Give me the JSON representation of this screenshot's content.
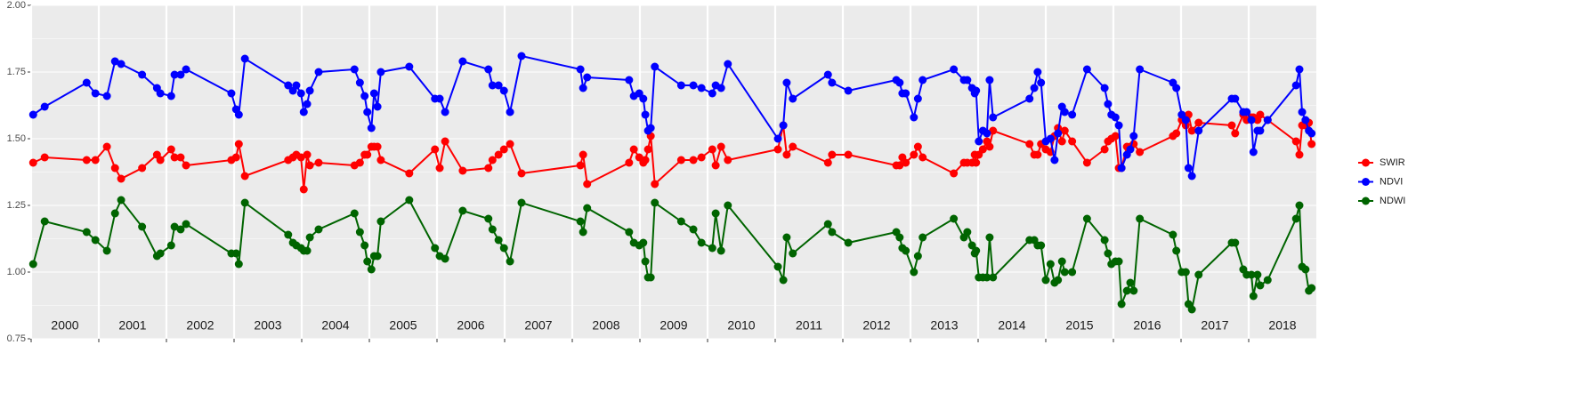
{
  "chart_data": {
    "type": "line",
    "year_labels": [
      "2000",
      "2001",
      "2002",
      "2003",
      "2004",
      "2005",
      "2006",
      "2007",
      "2008",
      "2009",
      "2010",
      "2011",
      "2012",
      "2013",
      "2014",
      "2015",
      "2016",
      "2017",
      "2018"
    ],
    "x": [
      2000.03,
      2000.2,
      2000.82,
      2000.95,
      2001.12,
      2001.24,
      2001.33,
      2001.64,
      2001.86,
      2001.91,
      2002.07,
      2002.12,
      2002.21,
      2002.29,
      2002.96,
      2003.03,
      2003.07,
      2003.16,
      2003.8,
      2003.87,
      2003.92,
      2003.99,
      2004.03,
      2004.08,
      2004.12,
      2004.25,
      2004.78,
      2004.86,
      2004.93,
      2004.97,
      2005.03,
      2005.07,
      2005.12,
      2005.17,
      2005.59,
      2005.97,
      2006.04,
      2006.12,
      2006.38,
      2006.76,
      2006.82,
      2006.91,
      2006.99,
      2007.08,
      2007.25,
      2008.12,
      2008.16,
      2008.22,
      2008.84,
      2008.91,
      2008.99,
      2009.05,
      2009.08,
      2009.12,
      2009.16,
      2009.22,
      2009.61,
      2009.79,
      2009.91,
      2010.07,
      2010.12,
      2010.2,
      2010.3,
      2011.04,
      2011.12,
      2011.17,
      2011.26,
      2011.78,
      2011.84,
      2012.08,
      2012.79,
      2012.84,
      2012.88,
      2012.93,
      2013.05,
      2013.11,
      2013.18,
      2013.64,
      2013.79,
      2013.84,
      2013.91,
      2013.95,
      2013.97,
      2014.01,
      2014.07,
      2014.13,
      2014.17,
      2014.22,
      2014.76,
      2014.83,
      2014.88,
      2014.93,
      2015.0,
      2015.07,
      2015.13,
      2015.18,
      2015.24,
      2015.28,
      2015.39,
      2015.61,
      2015.87,
      2015.92,
      2015.97,
      2016.03,
      2016.08,
      2016.12,
      2016.2,
      2016.25,
      2016.3,
      2016.39,
      2016.88,
      2016.93,
      2017.01,
      2017.07,
      2017.11,
      2017.16,
      2017.26,
      2017.75,
      2017.8,
      2017.92,
      2017.97,
      2018.04,
      2018.07,
      2018.13,
      2018.17,
      2018.28,
      2018.7,
      2018.75,
      2018.79,
      2018.84,
      2018.89,
      2018.93
    ],
    "series": [
      {
        "name": "SWIR",
        "color": "#ff0000",
        "values": [
          1.41,
          1.43,
          1.42,
          1.42,
          1.47,
          1.39,
          1.35,
          1.39,
          1.44,
          1.42,
          1.46,
          1.43,
          1.43,
          1.4,
          1.42,
          1.43,
          1.48,
          1.36,
          1.42,
          1.43,
          1.44,
          1.43,
          1.31,
          1.44,
          1.4,
          1.41,
          1.4,
          1.41,
          1.44,
          1.44,
          1.47,
          1.47,
          1.47,
          1.42,
          1.37,
          1.46,
          1.39,
          1.49,
          1.38,
          1.39,
          1.42,
          1.44,
          1.46,
          1.48,
          1.37,
          1.4,
          1.44,
          1.33,
          1.41,
          1.46,
          1.43,
          1.41,
          1.42,
          1.46,
          1.51,
          1.33,
          1.42,
          1.42,
          1.43,
          1.46,
          1.4,
          1.47,
          1.42,
          1.46,
          1.55,
          1.44,
          1.47,
          1.41,
          1.44,
          1.44,
          1.4,
          1.4,
          1.43,
          1.41,
          1.44,
          1.47,
          1.43,
          1.37,
          1.41,
          1.41,
          1.41,
          1.44,
          1.41,
          1.44,
          1.46,
          1.49,
          1.47,
          1.53,
          1.48,
          1.44,
          1.44,
          1.48,
          1.46,
          1.45,
          1.51,
          1.54,
          1.49,
          1.53,
          1.49,
          1.41,
          1.46,
          1.49,
          1.5,
          1.51,
          1.39,
          1.39,
          1.47,
          1.47,
          1.48,
          1.45,
          1.51,
          1.52,
          1.57,
          1.55,
          1.59,
          1.53,
          1.56,
          1.55,
          1.52,
          1.59,
          1.57,
          1.58,
          1.58,
          1.57,
          1.59,
          1.57,
          1.49,
          1.44,
          1.55,
          1.55,
          1.56,
          1.48
        ]
      },
      {
        "name": "NDVI",
        "color": "#0000ff",
        "values": [
          1.59,
          1.62,
          1.71,
          1.67,
          1.66,
          1.79,
          1.78,
          1.74,
          1.69,
          1.67,
          1.66,
          1.74,
          1.74,
          1.76,
          1.67,
          1.61,
          1.59,
          1.8,
          1.7,
          1.68,
          1.7,
          1.67,
          1.6,
          1.63,
          1.68,
          1.75,
          1.76,
          1.71,
          1.66,
          1.6,
          1.54,
          1.67,
          1.62,
          1.75,
          1.77,
          1.65,
          1.65,
          1.6,
          1.79,
          1.76,
          1.7,
          1.7,
          1.68,
          1.6,
          1.81,
          1.76,
          1.69,
          1.73,
          1.72,
          1.66,
          1.67,
          1.65,
          1.59,
          1.53,
          1.54,
          1.77,
          1.7,
          1.7,
          1.69,
          1.67,
          1.7,
          1.69,
          1.78,
          1.5,
          1.55,
          1.71,
          1.65,
          1.74,
          1.71,
          1.68,
          1.72,
          1.71,
          1.67,
          1.67,
          1.58,
          1.65,
          1.72,
          1.76,
          1.72,
          1.72,
          1.69,
          1.67,
          1.68,
          1.49,
          1.53,
          1.52,
          1.72,
          1.58,
          1.65,
          1.69,
          1.75,
          1.71,
          1.49,
          1.5,
          1.42,
          1.52,
          1.62,
          1.6,
          1.59,
          1.76,
          1.69,
          1.63,
          1.59,
          1.58,
          1.55,
          1.39,
          1.44,
          1.46,
          1.51,
          1.76,
          1.71,
          1.69,
          1.59,
          1.57,
          1.39,
          1.36,
          1.53,
          1.65,
          1.65,
          1.6,
          1.6,
          1.57,
          1.45,
          1.53,
          1.53,
          1.57,
          1.7,
          1.76,
          1.6,
          1.57,
          1.53,
          1.52
        ]
      },
      {
        "name": "NDWI",
        "color": "#006400",
        "values": [
          1.03,
          1.19,
          1.15,
          1.12,
          1.08,
          1.22,
          1.27,
          1.17,
          1.06,
          1.07,
          1.1,
          1.17,
          1.16,
          1.18,
          1.07,
          1.07,
          1.03,
          1.26,
          1.14,
          1.11,
          1.1,
          1.09,
          1.08,
          1.08,
          1.13,
          1.16,
          1.22,
          1.15,
          1.1,
          1.04,
          1.01,
          1.06,
          1.06,
          1.19,
          1.27,
          1.09,
          1.06,
          1.05,
          1.23,
          1.2,
          1.16,
          1.12,
          1.09,
          1.04,
          1.26,
          1.19,
          1.15,
          1.24,
          1.15,
          1.11,
          1.1,
          1.11,
          1.04,
          0.98,
          0.98,
          1.26,
          1.19,
          1.16,
          1.11,
          1.09,
          1.22,
          1.08,
          1.25,
          1.02,
          0.97,
          1.13,
          1.07,
          1.18,
          1.15,
          1.11,
          1.15,
          1.13,
          1.09,
          1.08,
          1.0,
          1.06,
          1.13,
          1.2,
          1.13,
          1.15,
          1.1,
          1.07,
          1.08,
          0.98,
          0.98,
          0.98,
          1.13,
          0.98,
          1.12,
          1.12,
          1.1,
          1.1,
          0.97,
          1.03,
          0.96,
          0.97,
          1.04,
          1.0,
          1.0,
          1.2,
          1.12,
          1.07,
          1.03,
          1.04,
          1.04,
          0.88,
          0.93,
          0.96,
          0.93,
          1.2,
          1.14,
          1.08,
          1.0,
          1.0,
          0.88,
          0.86,
          0.99,
          1.11,
          1.11,
          1.01,
          0.99,
          0.99,
          0.91,
          0.99,
          0.95,
          0.97,
          1.2,
          1.25,
          1.02,
          1.01,
          0.93,
          0.94
        ]
      }
    ],
    "xlim": [
      2000,
      2019
    ],
    "xticks": [
      2000,
      2001,
      2002,
      2003,
      2004,
      2005,
      2006,
      2007,
      2008,
      2009,
      2010,
      2011,
      2012,
      2013,
      2014,
      2015,
      2016,
      2017,
      2018
    ],
    "ylim": [
      0.75,
      2
    ],
    "yticks": [
      0.75,
      {
        "value": 1,
        "label": "1.00"
      },
      1.25,
      {
        "value": 1.5,
        "label": "1.50"
      },
      1.75,
      {
        "value": 2,
        "label": "2.00"
      }
    ],
    "grid": true,
    "legend": "right"
  }
}
